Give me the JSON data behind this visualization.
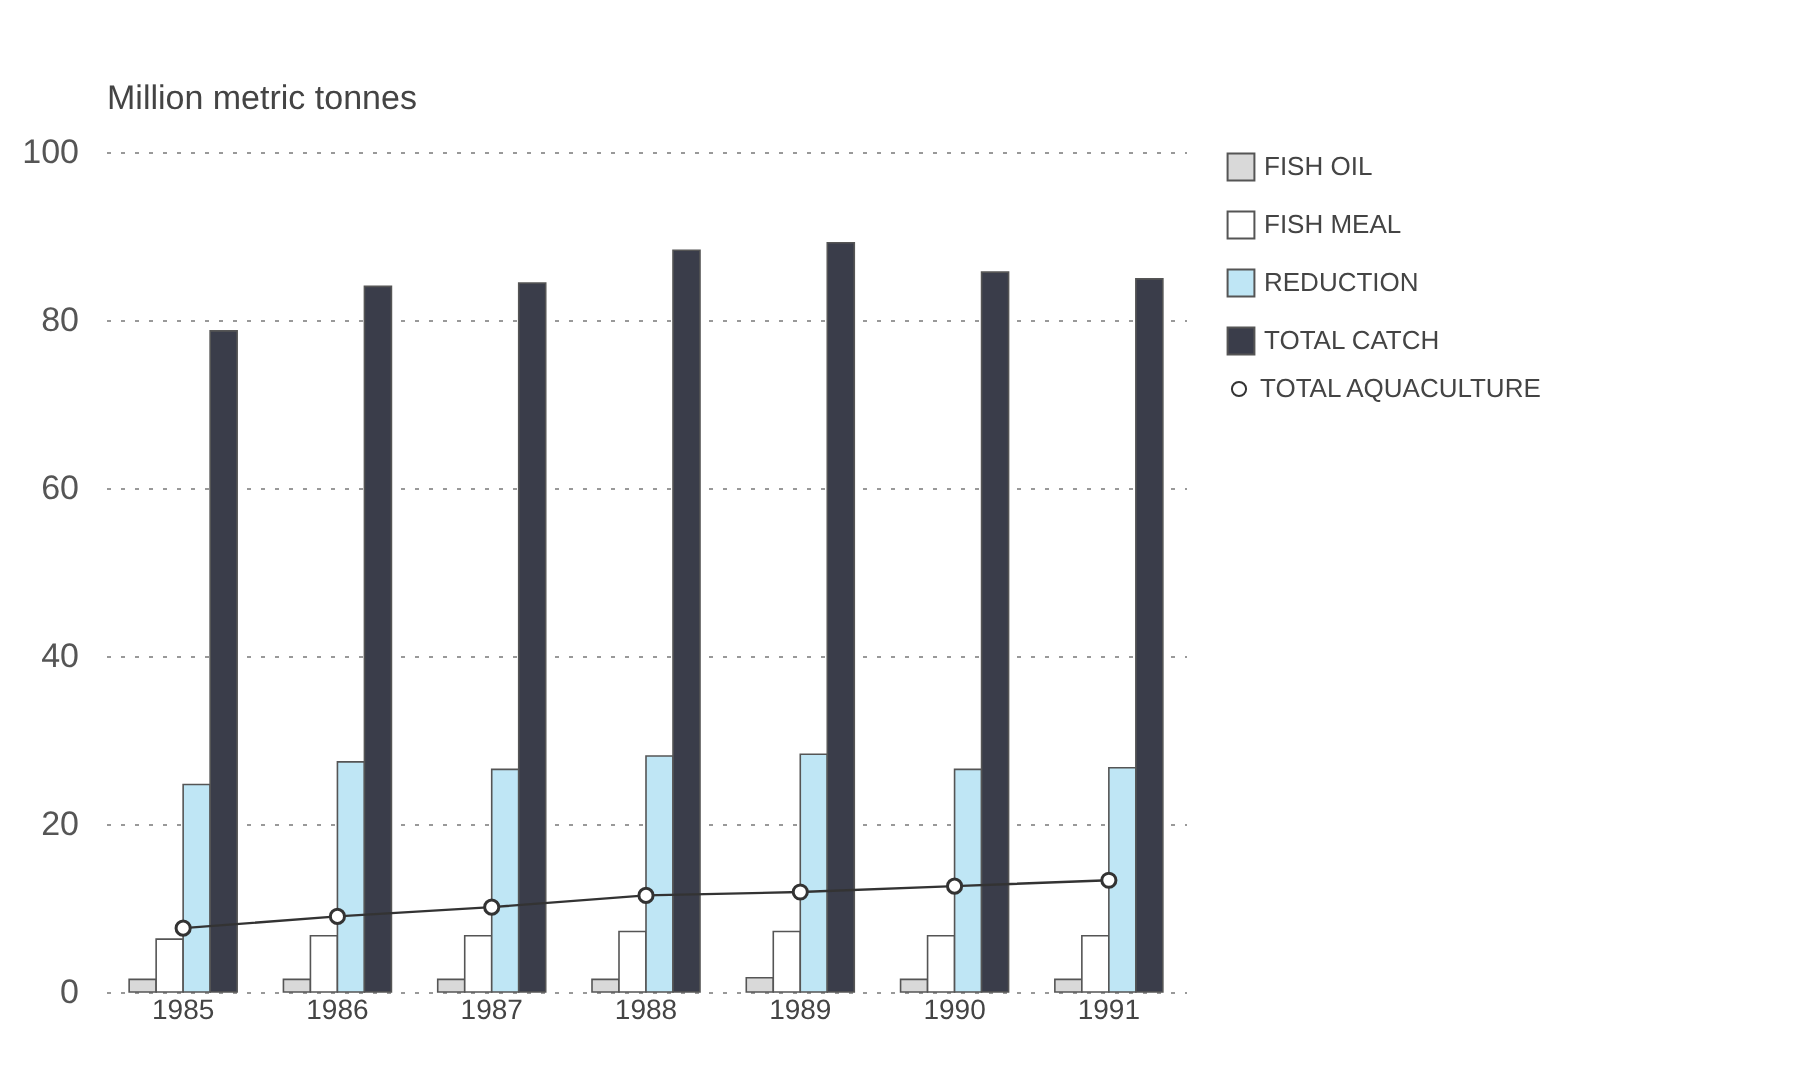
{
  "chart_data": {
    "type": "bar",
    "ylabel": "Million metric tonnes",
    "categories": [
      "1985",
      "1986",
      "1987",
      "1988",
      "1989",
      "1990",
      "1991"
    ],
    "series": [
      {
        "name": "FISH OIL",
        "color": "#d9d9d9",
        "values": [
          1.5,
          1.5,
          1.5,
          1.5,
          1.7,
          1.5,
          1.5
        ]
      },
      {
        "name": "FISH MEAL",
        "color": "#ffffff",
        "values": [
          6.3,
          6.7,
          6.7,
          7.2,
          7.2,
          6.7,
          6.7
        ]
      },
      {
        "name": "REDUCTION",
        "color": "#bfe6f5",
        "values": [
          24.7,
          27.4,
          26.5,
          28.1,
          28.3,
          26.5,
          26.7
        ]
      },
      {
        "name": "TOTAL AQUACULTURE",
        "type": "line",
        "color": "#333333",
        "values": [
          7.6,
          9.0,
          10.1,
          11.5,
          11.9,
          12.6,
          13.3
        ]
      },
      {
        "name": "TOTAL CATCH",
        "color": "#3a3d4a",
        "values": [
          78.7,
          84.0,
          84.4,
          88.3,
          89.2,
          85.7,
          84.9
        ]
      }
    ],
    "ylim": [
      0,
      100
    ],
    "yticks": [
      0,
      20,
      40,
      60,
      80,
      100
    ],
    "grid": "y",
    "legend": "right",
    "marker": "circle"
  }
}
